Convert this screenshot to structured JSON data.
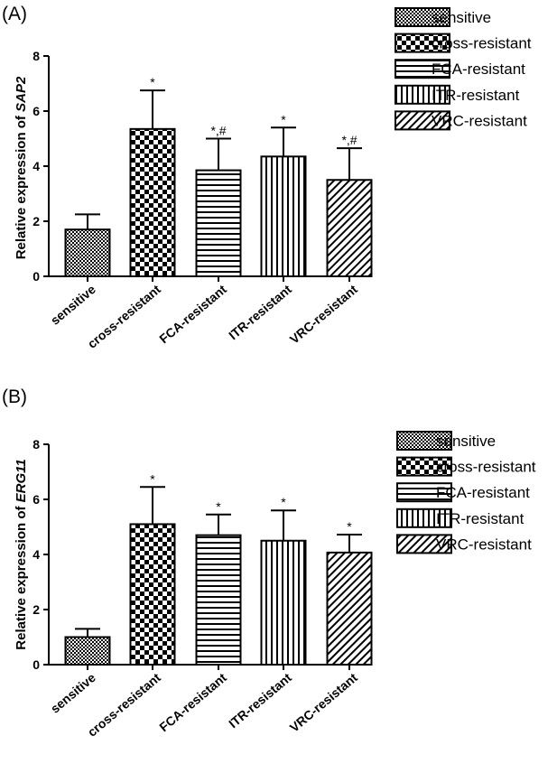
{
  "figure": {
    "panels": [
      {
        "label": "(A)",
        "ylabel_prefix": "Relative expression of ",
        "ylabel_gene": "SAP2",
        "legend": [
          "sensitive",
          "cross-resistant",
          "FCA-resistant",
          "ITR-resistant",
          "VRC-resistant"
        ]
      },
      {
        "label": "(B)",
        "ylabel_prefix": "Relative expression of ",
        "ylabel_gene": "ERG11",
        "legend": [
          "sensitive",
          "cross-resistant",
          "FCA-resistant",
          "ITR-resistant",
          "VRC-resistant"
        ]
      }
    ]
  },
  "chart_data": [
    {
      "type": "bar",
      "panel": "(A)",
      "ylabel": "Relative expression of SAP2",
      "categories": [
        "sensitive",
        "cross-resistant",
        "FCA-resistant",
        "ITR-resistant",
        "VRC-resistant"
      ],
      "values": [
        1.7,
        5.35,
        3.85,
        4.35,
        3.5
      ],
      "error": [
        0.55,
        1.4,
        1.15,
        1.05,
        1.15
      ],
      "annotations": [
        "",
        "*",
        "*,#",
        "*",
        "*,#"
      ],
      "patterns": [
        "crosshatch",
        "checker",
        "horizontal",
        "vertical",
        "diagonal"
      ],
      "ylim": [
        0,
        8
      ],
      "yticks": [
        0,
        2,
        4,
        6,
        8
      ],
      "grid": false,
      "legend_position": "top-right"
    },
    {
      "type": "bar",
      "panel": "(B)",
      "ylabel": "Relative expression of ERG11",
      "categories": [
        "sensitive",
        "cross-resistant",
        "FCA-resistant",
        "ITR-resistant",
        "VRC-resistant"
      ],
      "values": [
        1.0,
        5.1,
        4.7,
        4.5,
        4.07
      ],
      "error": [
        0.3,
        1.35,
        0.75,
        1.1,
        0.65
      ],
      "annotations": [
        "",
        "*",
        "*",
        "*",
        "*"
      ],
      "patterns": [
        "crosshatch",
        "checker",
        "horizontal",
        "vertical",
        "diagonal"
      ],
      "ylim": [
        0,
        8
      ],
      "yticks": [
        0,
        2,
        4,
        6,
        8
      ],
      "grid": false,
      "legend_position": "top-right"
    }
  ]
}
